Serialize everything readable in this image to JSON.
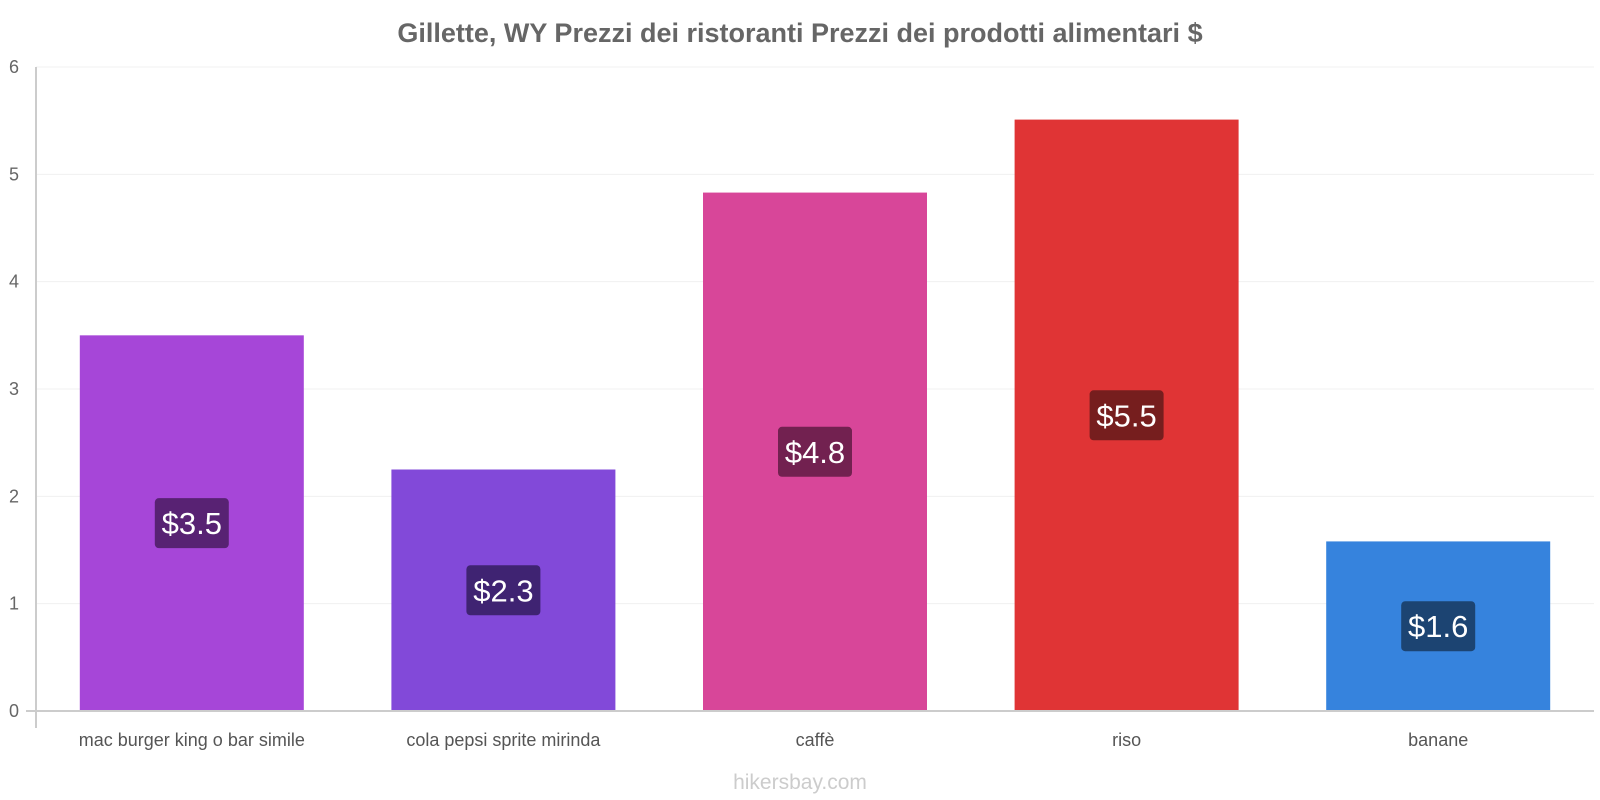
{
  "chart_data": {
    "type": "bar",
    "title": "Gillette, WY Prezzi dei ristoranti Prezzi dei prodotti alimentari $",
    "categories": [
      "mac burger king o bar simile",
      "cola pepsi sprite mirinda",
      "caffè",
      "riso",
      "banane"
    ],
    "values": [
      3.5,
      2.25,
      4.83,
      5.51,
      1.58
    ],
    "value_labels": [
      "$3.5",
      "$2.3",
      "$4.8",
      "$5.5",
      "$1.6"
    ],
    "bar_colors": [
      "#a646d8",
      "#8249d9",
      "#d84699",
      "#e03435",
      "#3683dd"
    ],
    "label_bg_colors": [
      "#582273",
      "#3f2372",
      "#722150",
      "#761e1e",
      "#1c4472"
    ],
    "ylim": [
      0,
      6
    ],
    "yticks": [
      0,
      1,
      2,
      3,
      4,
      5,
      6
    ],
    "xlabel": "",
    "ylabel": "",
    "grid": true
  },
  "source": "hikersbay.com"
}
